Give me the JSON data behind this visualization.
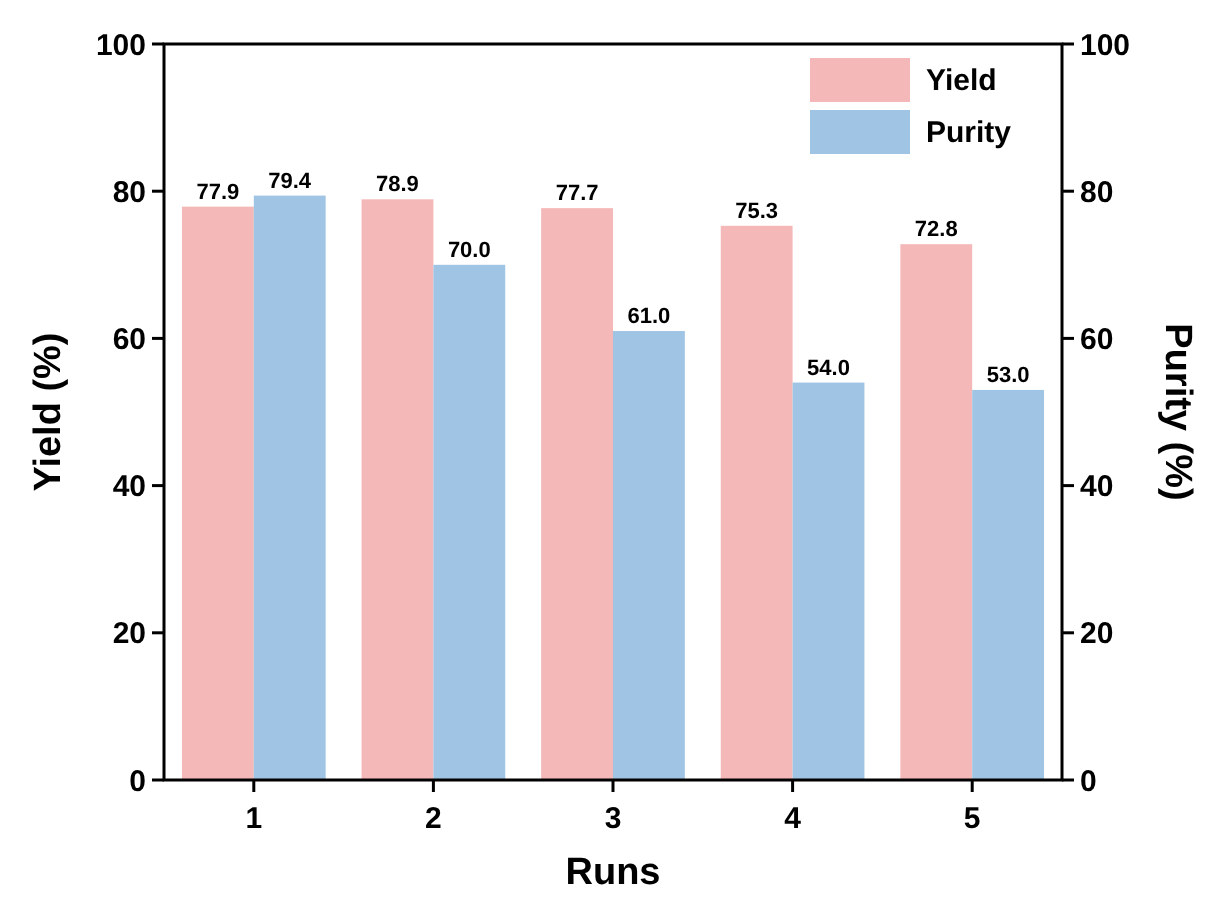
{
  "chart_data": {
    "type": "bar",
    "xlabel": "Runs",
    "ylabel": "Yield (%)",
    "y2label": "Purity (%)",
    "categories": [
      "1",
      "2",
      "3",
      "4",
      "5"
    ],
    "series": [
      {
        "name": "Yield",
        "color": "#f4b8b8",
        "values": [
          77.9,
          78.9,
          77.7,
          75.3,
          72.8
        ],
        "value_labels": [
          "77.9",
          "78.9",
          "77.7",
          "75.3",
          "72.8"
        ]
      },
      {
        "name": "Purity",
        "color": "#a0c4e4",
        "values": [
          79.4,
          70.0,
          61.0,
          54.0,
          53.0
        ],
        "value_labels": [
          "79.4",
          "70.0",
          "61.0",
          "54.0",
          "53.0"
        ]
      }
    ],
    "ylim": [
      0,
      100
    ],
    "yticks": [
      0,
      20,
      40,
      60,
      80,
      100
    ],
    "y2lim": [
      0,
      100
    ],
    "y2ticks": [
      0,
      20,
      40,
      60,
      80,
      100
    ],
    "legend": "top right",
    "grid": false
  }
}
